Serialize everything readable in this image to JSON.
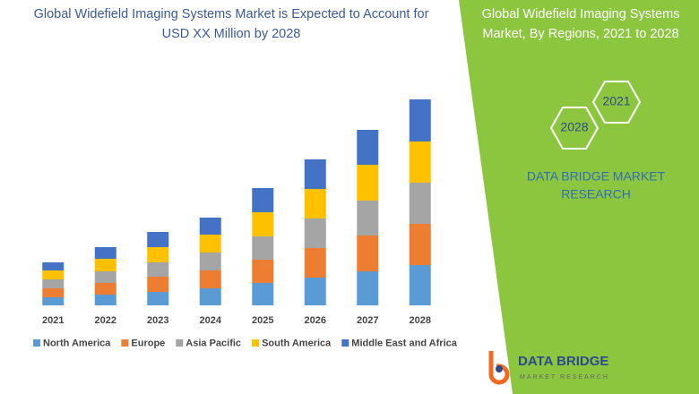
{
  "chart_data": {
    "type": "stacked-bar",
    "title": "Global Widefield Imaging Systems Market is Expected to Account for USD XX Million by 2028",
    "categories": [
      "2021",
      "2022",
      "2023",
      "2024",
      "2025",
      "2026",
      "2027",
      "2028"
    ],
    "series": [
      {
        "name": "North America",
        "color": "#5b9bd5",
        "values": [
          9,
          12,
          15,
          19,
          25,
          31,
          38,
          45
        ]
      },
      {
        "name": "Europe",
        "color": "#ed7d31",
        "values": [
          10,
          13,
          17,
          20,
          26,
          33,
          40,
          46
        ]
      },
      {
        "name": "Asia Pacific",
        "color": "#a5a5a5",
        "values": [
          10,
          13,
          16,
          20,
          26,
          33,
          39,
          46
        ]
      },
      {
        "name": "South America",
        "color": "#ffc000",
        "values": [
          10,
          14,
          17,
          20,
          27,
          33,
          40,
          46
        ]
      },
      {
        "name": "Middle East and Africa",
        "color": "#4472c4",
        "values": [
          9,
          13,
          17,
          19,
          27,
          33,
          39,
          47
        ]
      }
    ],
    "ylim": [
      0,
      240
    ]
  },
  "panel": {
    "title": "Global Widefield Imaging Systems Market, By Regions, 2021 to 2028",
    "hex_labels": [
      "2021",
      "2028"
    ],
    "brand": "DATA BRIDGE MARKET RESEARCH"
  },
  "logo": {
    "name": "DATA BRIDGE",
    "tagline": "MARKET RESEARCH"
  }
}
